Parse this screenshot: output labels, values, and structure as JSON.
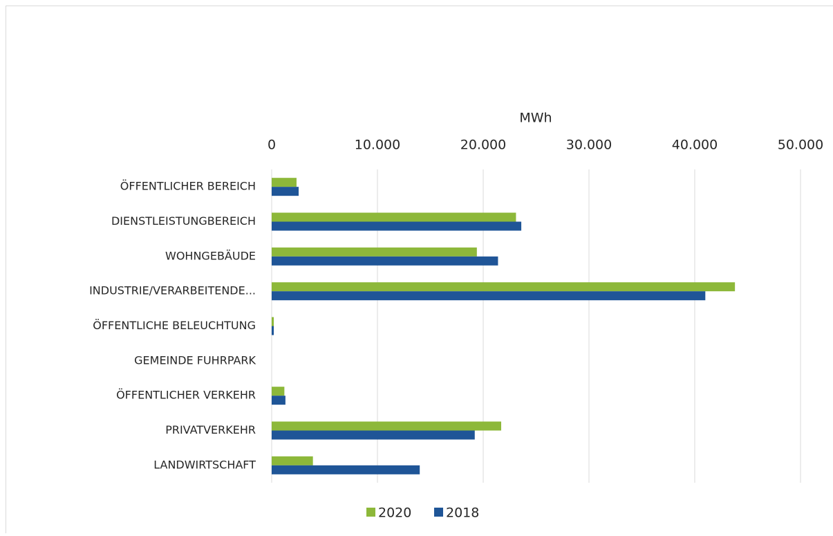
{
  "chart_data": {
    "type": "hbar",
    "x_label": "MWh",
    "categories": [
      "ÖFFENTLICHER BEREICH",
      "DIENSTLEISTUNGBEREICH",
      "WOHNGEBÄUDE",
      "INDUSTRIE/VERARBEITENDE...",
      "ÖFFENTLICHE BELEUCHTUNG",
      "GEMEINDE FUHRPARK",
      "ÖFFENTLICHER VERKEHR",
      "PRIVATVERKEHR",
      "LANDWIRTSCHAFT"
    ],
    "series": [
      {
        "name": "2020",
        "color": "#8db83a",
        "values": [
          2350,
          23100,
          19400,
          43800,
          200,
          0,
          1200,
          21700,
          3900
        ]
      },
      {
        "name": "2018",
        "color": "#1f5597",
        "values": [
          2550,
          23600,
          21400,
          41000,
          200,
          0,
          1300,
          19200,
          14000
        ]
      }
    ],
    "xlim": [
      0,
      50000
    ],
    "xticks": [
      0,
      {
        "value": 10000,
        "label": "10.000"
      },
      {
        "value": 20000,
        "label": "20.000"
      },
      {
        "value": 30000,
        "label": "30.000"
      },
      {
        "value": 40000,
        "label": "40.000"
      },
      {
        "value": 50000,
        "label": "50.000"
      }
    ],
    "grid": true,
    "legend": "bottom"
  }
}
